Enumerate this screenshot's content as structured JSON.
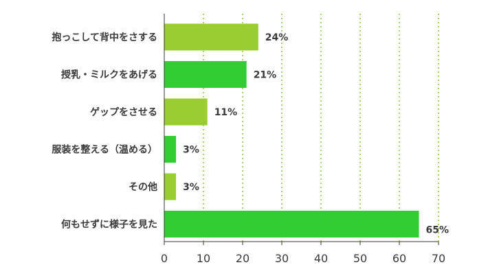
{
  "chart_data": {
    "type": "bar",
    "orientation": "horizontal",
    "categories": [
      "抱っこして背中をさする",
      "授乳・ミルクをあげる",
      "ゲップをさせる",
      "服装を整える（温める）",
      "その他",
      "何もせずに様子を見た"
    ],
    "values": [
      24,
      21,
      11,
      3,
      3,
      65
    ],
    "value_labels": [
      "24%",
      "21%",
      "11%",
      "3%",
      "3%",
      "65%"
    ],
    "bar_colors": [
      "#9acd32",
      "#32cd32",
      "#9acd32",
      "#32cd32",
      "#9acd32",
      "#32cd32"
    ],
    "xlim": [
      0,
      70
    ],
    "xticks": [
      0,
      10,
      20,
      30,
      40,
      50,
      60,
      70
    ],
    "tick_labels": [
      "0",
      "10",
      "20",
      "30",
      "40",
      "50",
      "60",
      "70"
    ],
    "grid": "vertical dotted",
    "grid_color": "#8cc63f",
    "axis_color": "#333333",
    "title": "",
    "xlabel": "",
    "ylabel": ""
  }
}
